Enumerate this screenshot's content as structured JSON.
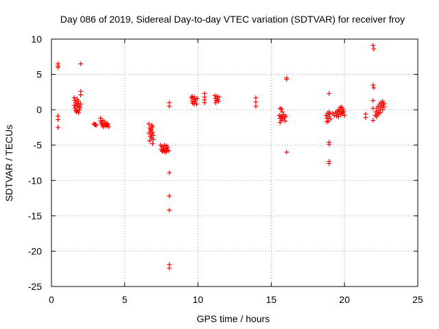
{
  "chart_data": {
    "type": "scatter",
    "title": "Day 086 of 2019, Sidereal Day-to-day VTEC variation (SDTVAR) for receiver froy",
    "xlabel": "GPS time / hours",
    "ylabel": "SDTVAR / TECUs",
    "xlim": [
      0,
      25
    ],
    "ylim": [
      -25,
      10
    ],
    "xticks": [
      0,
      5,
      10,
      15,
      20,
      25
    ],
    "yticks": [
      10,
      5,
      0,
      -5,
      -10,
      -15,
      -20,
      -25
    ],
    "grid": true,
    "marker": "+",
    "marker_color": "#ff0000",
    "series": [
      {
        "name": "SDTVAR",
        "points": [
          [
            0.45,
            6.5
          ],
          [
            0.45,
            6.2
          ],
          [
            0.45,
            6.0
          ],
          [
            0.45,
            -0.9
          ],
          [
            0.45,
            -1.4
          ],
          [
            0.45,
            -2.5
          ],
          [
            2.0,
            6.5
          ],
          [
            2.0,
            2.6
          ],
          [
            2.0,
            2.1
          ],
          [
            1.55,
            1.7
          ],
          [
            1.6,
            1.3
          ],
          [
            1.65,
            1.0
          ],
          [
            1.7,
            0.7
          ],
          [
            1.75,
            0.4
          ],
          [
            1.6,
            0.2
          ],
          [
            1.65,
            -0.1
          ],
          [
            1.7,
            -0.3
          ],
          [
            1.85,
            1.2
          ],
          [
            1.8,
            0.9
          ],
          [
            1.9,
            0.5
          ],
          [
            1.95,
            0.3
          ],
          [
            1.9,
            0.0
          ],
          [
            1.8,
            -0.2
          ],
          [
            2.0,
            0.8
          ],
          [
            1.55,
            0.6
          ],
          [
            1.75,
            1.5
          ],
          [
            1.85,
            -0.4
          ],
          [
            2.9,
            -2.0
          ],
          [
            2.95,
            -2.1
          ],
          [
            3.0,
            -2.1
          ],
          [
            3.05,
            -2.2
          ],
          [
            3.35,
            -1.2
          ],
          [
            3.35,
            -1.6
          ],
          [
            3.4,
            -1.9
          ],
          [
            3.45,
            -2.2
          ],
          [
            3.5,
            -1.5
          ],
          [
            3.5,
            -2.0
          ],
          [
            3.55,
            -2.4
          ],
          [
            3.6,
            -1.7
          ],
          [
            3.65,
            -2.1
          ],
          [
            3.7,
            -2.3
          ],
          [
            3.75,
            -1.9
          ],
          [
            3.8,
            -2.2
          ],
          [
            3.85,
            -2.0
          ],
          [
            3.9,
            -2.4
          ],
          [
            6.65,
            -2.0
          ],
          [
            6.7,
            -2.6
          ],
          [
            6.75,
            -3.0
          ],
          [
            6.8,
            -3.5
          ],
          [
            6.85,
            -4.0
          ],
          [
            6.7,
            -4.4
          ],
          [
            6.75,
            -3.8
          ],
          [
            6.8,
            -2.8
          ],
          [
            6.9,
            -2.4
          ],
          [
            6.9,
            -3.2
          ],
          [
            6.95,
            -3.6
          ],
          [
            6.95,
            -4.2
          ],
          [
            6.65,
            -3.3
          ],
          [
            6.85,
            -2.2
          ],
          [
            6.9,
            -4.8
          ],
          [
            7.45,
            -5.0
          ],
          [
            7.5,
            -5.6
          ],
          [
            7.55,
            -5.2
          ],
          [
            7.6,
            -5.9
          ],
          [
            7.65,
            -5.4
          ],
          [
            7.7,
            -5.0
          ],
          [
            7.75,
            -6.0
          ],
          [
            7.8,
            -5.5
          ],
          [
            7.85,
            -5.1
          ],
          [
            7.9,
            -5.7
          ],
          [
            7.95,
            -5.3
          ],
          [
            8.0,
            -5.8
          ],
          [
            7.55,
            -5.8
          ],
          [
            7.7,
            -5.7
          ],
          [
            7.85,
            -5.9
          ],
          [
            8.05,
            1.0
          ],
          [
            8.05,
            0.5
          ],
          [
            8.05,
            -8.9
          ],
          [
            8.05,
            -12.2
          ],
          [
            8.05,
            -14.2
          ],
          [
            8.05,
            -21.9
          ],
          [
            8.05,
            -22.4
          ],
          [
            9.55,
            1.7
          ],
          [
            9.6,
            1.2
          ],
          [
            9.65,
            0.9
          ],
          [
            9.7,
            1.5
          ],
          [
            9.75,
            1.8
          ],
          [
            9.8,
            1.1
          ],
          [
            9.85,
            1.4
          ],
          [
            9.9,
            0.8
          ],
          [
            9.95,
            1.6
          ],
          [
            9.6,
            1.9
          ],
          [
            9.75,
            0.8
          ],
          [
            10.45,
            2.3
          ],
          [
            10.45,
            1.8
          ],
          [
            10.45,
            1.4
          ],
          [
            10.45,
            1.0
          ],
          [
            11.15,
            2.0
          ],
          [
            11.2,
            1.6
          ],
          [
            11.25,
            1.3
          ],
          [
            11.3,
            1.9
          ],
          [
            11.35,
            1.5
          ],
          [
            11.4,
            1.2
          ],
          [
            11.45,
            1.8
          ],
          [
            11.2,
            1.0
          ],
          [
            13.95,
            1.7
          ],
          [
            13.95,
            1.1
          ],
          [
            13.95,
            0.5
          ],
          [
            15.6,
            0.2
          ],
          [
            15.7,
            0.1
          ],
          [
            15.75,
            -0.3
          ],
          [
            15.55,
            -0.8
          ],
          [
            15.6,
            -1.2
          ],
          [
            15.65,
            -0.9
          ],
          [
            15.7,
            -1.5
          ],
          [
            15.75,
            -1.0
          ],
          [
            15.8,
            -1.3
          ],
          [
            15.85,
            -0.7
          ],
          [
            15.9,
            -1.1
          ],
          [
            15.95,
            -1.6
          ],
          [
            16.0,
            -0.9
          ],
          [
            15.6,
            -1.8
          ],
          [
            16.05,
            4.5
          ],
          [
            16.05,
            4.3
          ],
          [
            16.05,
            -6.0
          ],
          [
            18.75,
            -0.8
          ],
          [
            18.8,
            -1.2
          ],
          [
            18.85,
            -0.5
          ],
          [
            18.9,
            -1.6
          ],
          [
            18.95,
            -1.0
          ],
          [
            19.0,
            -0.6
          ],
          [
            19.05,
            -1.3
          ],
          [
            18.8,
            -1.7
          ],
          [
            18.95,
            -0.3
          ],
          [
            18.95,
            2.3
          ],
          [
            18.95,
            -4.6
          ],
          [
            18.95,
            -4.9
          ],
          [
            18.95,
            -7.3
          ],
          [
            18.95,
            -7.6
          ],
          [
            19.2,
            -0.5
          ],
          [
            19.3,
            -0.8
          ],
          [
            19.4,
            -0.4
          ],
          [
            19.45,
            -0.9
          ],
          [
            19.5,
            -0.2
          ],
          [
            19.55,
            -0.6
          ],
          [
            19.6,
            0.0
          ],
          [
            19.65,
            -0.3
          ],
          [
            19.7,
            0.3
          ],
          [
            19.75,
            -0.1
          ],
          [
            19.8,
            0.4
          ],
          [
            19.85,
            -0.5
          ],
          [
            19.9,
            0.1
          ],
          [
            19.95,
            -0.2
          ],
          [
            20.0,
            -0.8
          ],
          [
            19.6,
            -1.0
          ],
          [
            19.75,
            -0.7
          ],
          [
            19.9,
            -0.4
          ],
          [
            21.45,
            -0.6
          ],
          [
            21.45,
            -1.1
          ],
          [
            21.95,
            9.1
          ],
          [
            22.0,
            8.6
          ],
          [
            21.95,
            3.5
          ],
          [
            22.0,
            3.1
          ],
          [
            21.95,
            1.3
          ],
          [
            21.95,
            0.2
          ],
          [
            21.95,
            -1.5
          ],
          [
            22.1,
            -0.8
          ],
          [
            22.15,
            -0.3
          ],
          [
            22.2,
            0.2
          ],
          [
            22.25,
            -0.5
          ],
          [
            22.3,
            0.5
          ],
          [
            22.35,
            -0.1
          ],
          [
            22.4,
            0.8
          ],
          [
            22.45,
            0.3
          ],
          [
            22.5,
            1.0
          ],
          [
            22.55,
            0.5
          ],
          [
            22.6,
            1.2
          ],
          [
            22.65,
            0.7
          ],
          [
            22.7,
            0.9
          ],
          [
            22.3,
            -0.7
          ],
          [
            22.45,
            -0.4
          ],
          [
            22.6,
            0.0
          ],
          [
            22.2,
            -1.0
          ],
          [
            22.7,
            0.4
          ]
        ]
      }
    ]
  }
}
